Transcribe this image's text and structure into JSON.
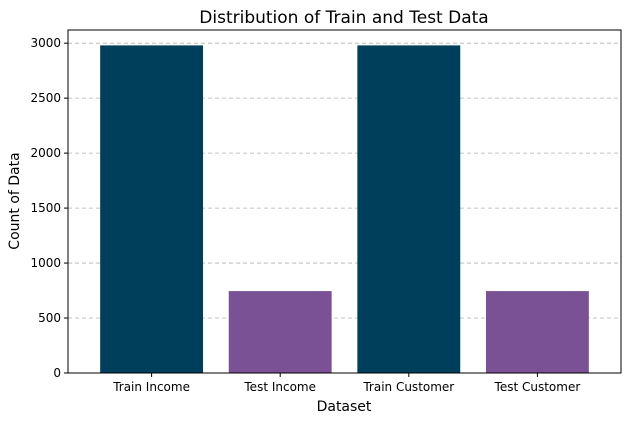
{
  "chart_data": {
    "type": "bar",
    "title": "Distribution of Train and Test Data",
    "xlabel": "Dataset",
    "ylabel": "Count of Data",
    "categories": [
      "Train Income",
      "Test Income",
      "Train Customer",
      "Test Customer"
    ],
    "values": [
      2980,
      745,
      2980,
      745
    ],
    "colors": [
      "#003f5c",
      "#7a5195",
      "#003f5c",
      "#7a5195"
    ],
    "ylim": [
      0,
      3120
    ],
    "yticks": [
      0,
      500,
      1000,
      1500,
      2000,
      2500,
      3000
    ],
    "grid": "y-dashed"
  }
}
